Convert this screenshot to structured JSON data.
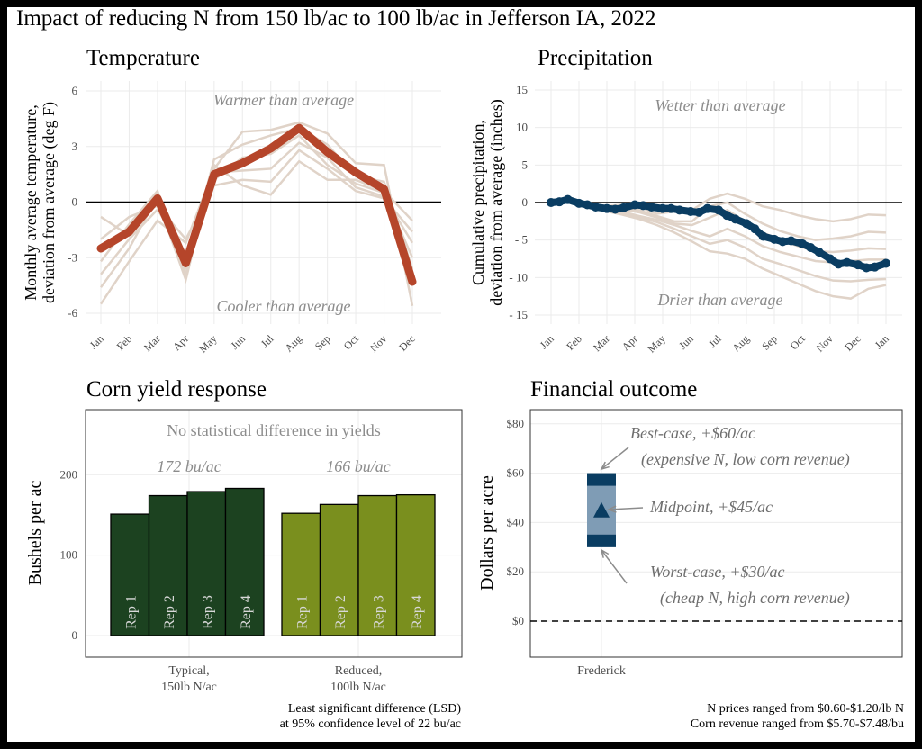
{
  "title": "Impact of reducing N from 150 lb/ac to 100 lb/ac in Jefferson IA, 2022",
  "colors": {
    "temp_line": "#b5452a",
    "bg_lines": "#e0d3c8",
    "precip_line": "#0a3d62",
    "typical_bar": "#1c4220",
    "reduced_bar": "#7a8f1e",
    "fin_dark": "#0a3d62",
    "fin_light": "#7f9cb5"
  },
  "chart_data": [
    {
      "id": "temperature",
      "type": "line",
      "title": "Temperature",
      "ylabel": "Monthly average temperature, deviation from average (deg F)",
      "ylabel_lines": [
        "Monthly average temperature,",
        "deviation from average (deg F)"
      ],
      "categories": [
        "Jan",
        "Feb",
        "Mar",
        "Apr",
        "May",
        "Jun",
        "Jul",
        "Aug",
        "Sep",
        "Oct",
        "Nov",
        "Dec"
      ],
      "ylim": [
        -6,
        6
      ],
      "yticks": [
        -6,
        -3,
        0,
        3,
        6
      ],
      "ytick_labels": [
        "-6",
        "-3",
        "0",
        "3",
        "6"
      ],
      "series": [
        {
          "values": [
            -2.5,
            -1.6,
            0.2,
            -3.3,
            1.5,
            2.1,
            2.9,
            4.0,
            2.7,
            1.6,
            0.7,
            -4.3
          ]
        }
      ],
      "background_series": [
        [
          -5.5,
          -3.2,
          -1.0,
          -2.2,
          1.8,
          3.8,
          3.9,
          4.3,
          3.7,
          2.1,
          2.0,
          -5.6
        ],
        [
          -4.6,
          -2.5,
          0.3,
          -3.5,
          2.3,
          3.1,
          3.6,
          4.0,
          3.1,
          1.4,
          1.1,
          -3.6
        ],
        [
          -3.9,
          -2.0,
          -0.4,
          -2.8,
          1.2,
          2.4,
          2.6,
          3.6,
          2.0,
          1.0,
          0.5,
          -3.0
        ],
        [
          -3.2,
          -1.2,
          0.6,
          -3.9,
          1.6,
          1.7,
          1.8,
          3.2,
          2.4,
          0.8,
          0.3,
          -2.2
        ],
        [
          -2.0,
          -0.8,
          -0.2,
          -2.0,
          0.9,
          1.2,
          1.1,
          2.8,
          1.8,
          0.6,
          0.2,
          -1.6
        ],
        [
          -0.8,
          -1.8,
          0.1,
          -4.2,
          2.0,
          0.9,
          0.4,
          2.2,
          1.2,
          1.2,
          0.6,
          -1.0
        ]
      ],
      "annotations": {
        "top": "Warmer than average",
        "bottom": "Cooler than average"
      }
    },
    {
      "id": "precipitation",
      "type": "line",
      "title": "Precipitation",
      "ylabel": "Cumulative precipitation, deviation from average (inches)",
      "ylabel_lines": [
        "Cumulative precipitation,",
        "deviation from average (inches)"
      ],
      "categories": [
        "Jan",
        "Feb",
        "Mar",
        "Apr",
        "May",
        "Jun",
        "Jul",
        "Aug",
        "Sep",
        "Oct",
        "Nov",
        "Dec",
        "Jan"
      ],
      "ylim": [
        -15,
        15
      ],
      "yticks": [
        -15,
        -10,
        -5,
        0,
        5,
        10,
        15
      ],
      "ytick_labels": [
        "- 15",
        "- 10",
        "- 5",
        "0",
        "5",
        "10",
        "15"
      ],
      "series": [
        {
          "x": [
            0,
            0.3,
            0.6,
            1,
            1.3,
            1.6,
            2,
            2.3,
            2.6,
            3,
            3.3,
            3.6,
            4,
            4.3,
            4.6,
            5,
            5.3,
            5.6,
            6,
            6.3,
            6.6,
            7,
            7.3,
            7.6,
            8,
            8.3,
            8.6,
            9,
            9.3,
            9.6,
            10,
            10.3,
            10.6,
            11,
            11.3,
            11.6,
            12
          ],
          "values": [
            0,
            0.1,
            0.4,
            -0.1,
            -0.3,
            -0.6,
            -0.8,
            -0.9,
            -0.7,
            -0.3,
            -0.4,
            -0.6,
            -0.8,
            -0.8,
            -1.0,
            -1.2,
            -1.3,
            -0.8,
            -1.0,
            -1.7,
            -2.2,
            -2.8,
            -3.5,
            -4.5,
            -4.9,
            -5.2,
            -5.1,
            -5.5,
            -6.0,
            -6.6,
            -7.5,
            -8.2,
            -8.0,
            -8.3,
            -8.7,
            -8.6,
            -8.1
          ]
        }
      ],
      "background_series": [
        [
          0,
          0,
          -0.3,
          -0.5,
          -0.3,
          -0.6,
          -1.5,
          -1.2,
          -1.0,
          0.5,
          1.2,
          0.5,
          -0.5,
          -1.0,
          -1.7,
          -2.2,
          -2.5,
          -2.2,
          -1.6,
          -1.7
        ],
        [
          0,
          0,
          -0.4,
          -0.7,
          -0.8,
          -1.0,
          -1.8,
          -2.5,
          -2.5,
          -0.5,
          0,
          -1.5,
          -2.8,
          -3.8,
          -4.5,
          -5.0,
          -4.8,
          -4.5,
          -3.9,
          -4.0
        ],
        [
          0,
          0,
          -0.2,
          -0.6,
          -0.9,
          -1.3,
          -2.0,
          -2.8,
          -3.0,
          -2.0,
          -1.0,
          -2.5,
          -4.0,
          -5.0,
          -5.8,
          -6.5,
          -6.6,
          -6.4,
          -6.1,
          -6.2
        ],
        [
          0,
          0,
          -0.5,
          -0.8,
          -1.2,
          -1.8,
          -2.3,
          -3.0,
          -3.8,
          -4.5,
          -3.5,
          -4.5,
          -5.8,
          -6.6,
          -7.2,
          -7.8,
          -8.0,
          -7.8,
          -7.6,
          -7.6
        ],
        [
          0,
          0,
          -0.3,
          -0.9,
          -1.5,
          -2.0,
          -2.6,
          -3.5,
          -4.5,
          -5.5,
          -5.0,
          -6.0,
          -7.5,
          -8.2,
          -9.0,
          -9.8,
          -10.4,
          -10.5,
          -10.3,
          -10.2
        ],
        [
          0,
          0,
          -0.6,
          -1.1,
          -1.6,
          -2.2,
          -3.0,
          -4.0,
          -5.2,
          -6.5,
          -6.8,
          -7.5,
          -8.8,
          -9.8,
          -10.8,
          -11.8,
          -12.5,
          -12.8,
          -11.5,
          -11.0
        ]
      ],
      "annotations": {
        "top": "Wetter than average",
        "bottom": "Drier than average"
      }
    },
    {
      "id": "corn-yield",
      "type": "bar",
      "title": "Corn yield response",
      "ylabel": "Bushels per ac",
      "ylim": [
        0,
        220
      ],
      "yticks": [
        0,
        100,
        200
      ],
      "groups": [
        {
          "label_lines": [
            "Typical,",
            "150lb N/ac"
          ],
          "mean_label": "172 bu/ac",
          "reps": [
            "Rep 1",
            "Rep 2",
            "Rep 3",
            "Rep 4"
          ],
          "values": [
            151,
            174,
            179,
            183
          ]
        },
        {
          "label_lines": [
            "Reduced,",
            "100lb N/ac"
          ],
          "mean_label": "166 bu/ac",
          "reps": [
            "Rep 1",
            "Rep 2",
            "Rep 3",
            "Rep 4"
          ],
          "values": [
            152,
            163,
            174,
            175
          ]
        }
      ],
      "annotation": "No statistical difference in yields",
      "footnote_lines": [
        "Least significant difference (LSD)",
        "at 95% confidence level of 22 bu/ac"
      ]
    },
    {
      "id": "financial",
      "type": "range",
      "title": "Financial outcome",
      "ylabel": "Dollars per acre",
      "ylim": [
        -15,
        85
      ],
      "yticks": [
        0,
        20,
        40,
        60,
        80
      ],
      "ytick_labels": [
        "$0",
        "$20",
        "$40",
        "$60",
        "$80"
      ],
      "category": "Frederick",
      "best": 60,
      "mid": 45,
      "worst": 30,
      "annotations": {
        "best_lines": [
          "Best-case, +$60/ac",
          "(expensive N, low corn revenue)"
        ],
        "mid": "Midpoint, +$45/ac",
        "worst_lines": [
          "Worst-case, +$30/ac",
          "(cheap N,  high corn revenue)"
        ]
      },
      "footnote_lines": [
        "N prices ranged from $0.60-$1.20/lb N",
        "Corn revenue ranged from $5.70-$7.48/bu"
      ]
    }
  ]
}
